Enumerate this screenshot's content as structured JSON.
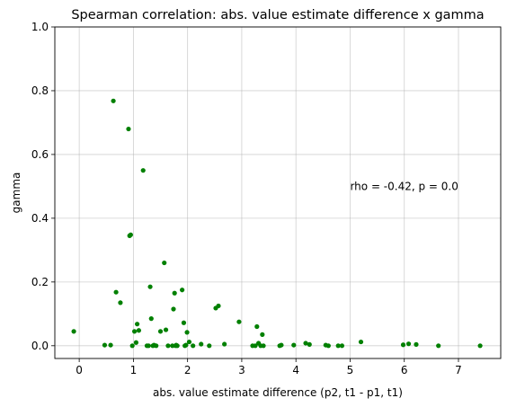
{
  "chart_data": {
    "type": "scatter",
    "title": "Spearman correlation: abs. value estimate difference x gamma",
    "xlabel": "abs. value estimate difference (p2, t1 - p1, t1)",
    "ylabel": "gamma",
    "xlim": [
      -0.45,
      7.78
    ],
    "ylim": [
      -0.04,
      1.0
    ],
    "xticks": [
      0,
      1,
      2,
      3,
      4,
      5,
      6,
      7
    ],
    "yticks": [
      0.0,
      0.2,
      0.4,
      0.6,
      0.8,
      1.0
    ],
    "xtick_labels": [
      "0",
      "1",
      "2",
      "3",
      "4",
      "5",
      "6",
      "7"
    ],
    "ytick_labels": [
      "0.0",
      "0.2",
      "0.4",
      "0.6",
      "0.8",
      "1.0"
    ],
    "grid": true,
    "marker_color": "#008000",
    "annotation": {
      "text": "rho = -0.42, p = 0.0",
      "x": 5.0,
      "y": 0.5
    },
    "series": [
      {
        "x": [
          -0.1,
          0.47,
          0.58,
          0.68,
          0.63,
          0.76,
          0.91,
          0.93,
          0.95,
          0.98,
          1.02,
          1.05,
          1.07,
          1.1,
          1.18,
          1.25,
          1.28,
          1.31,
          1.33,
          1.36,
          1.38,
          1.42,
          1.5,
          1.57,
          1.6,
          1.64,
          1.72,
          1.74,
          1.76,
          1.78,
          1.79,
          1.81,
          1.9,
          1.93,
          1.95,
          1.97,
          1.99,
          2.03,
          2.1,
          2.25,
          2.4,
          2.52,
          2.57,
          2.68,
          2.95,
          3.2,
          3.25,
          3.28,
          3.31,
          3.35,
          3.38,
          3.4,
          3.7,
          3.73,
          3.96,
          4.18,
          4.25,
          4.55,
          4.6,
          4.78,
          4.85,
          5.2,
          5.98,
          6.08,
          6.22,
          6.63,
          7.4
        ],
        "y": [
          0.045,
          0.002,
          0.002,
          0.168,
          0.768,
          0.135,
          0.68,
          0.345,
          0.348,
          0.0,
          0.045,
          0.01,
          0.068,
          0.048,
          0.55,
          0.0,
          0.0,
          0.185,
          0.085,
          0.0,
          0.002,
          0.0,
          0.045,
          0.26,
          0.05,
          0.0,
          0.0,
          0.115,
          0.165,
          0.0,
          0.002,
          0.0,
          0.175,
          0.072,
          0.0,
          0.002,
          0.042,
          0.012,
          0.0,
          0.005,
          0.0,
          0.118,
          0.125,
          0.005,
          0.075,
          0.0,
          0.0,
          0.06,
          0.008,
          0.0,
          0.035,
          0.0,
          0.0,
          0.002,
          0.002,
          0.008,
          0.004,
          0.002,
          0.0,
          0.0,
          0.0,
          0.012,
          0.003,
          0.006,
          0.004,
          0.0,
          0.0
        ]
      }
    ]
  }
}
